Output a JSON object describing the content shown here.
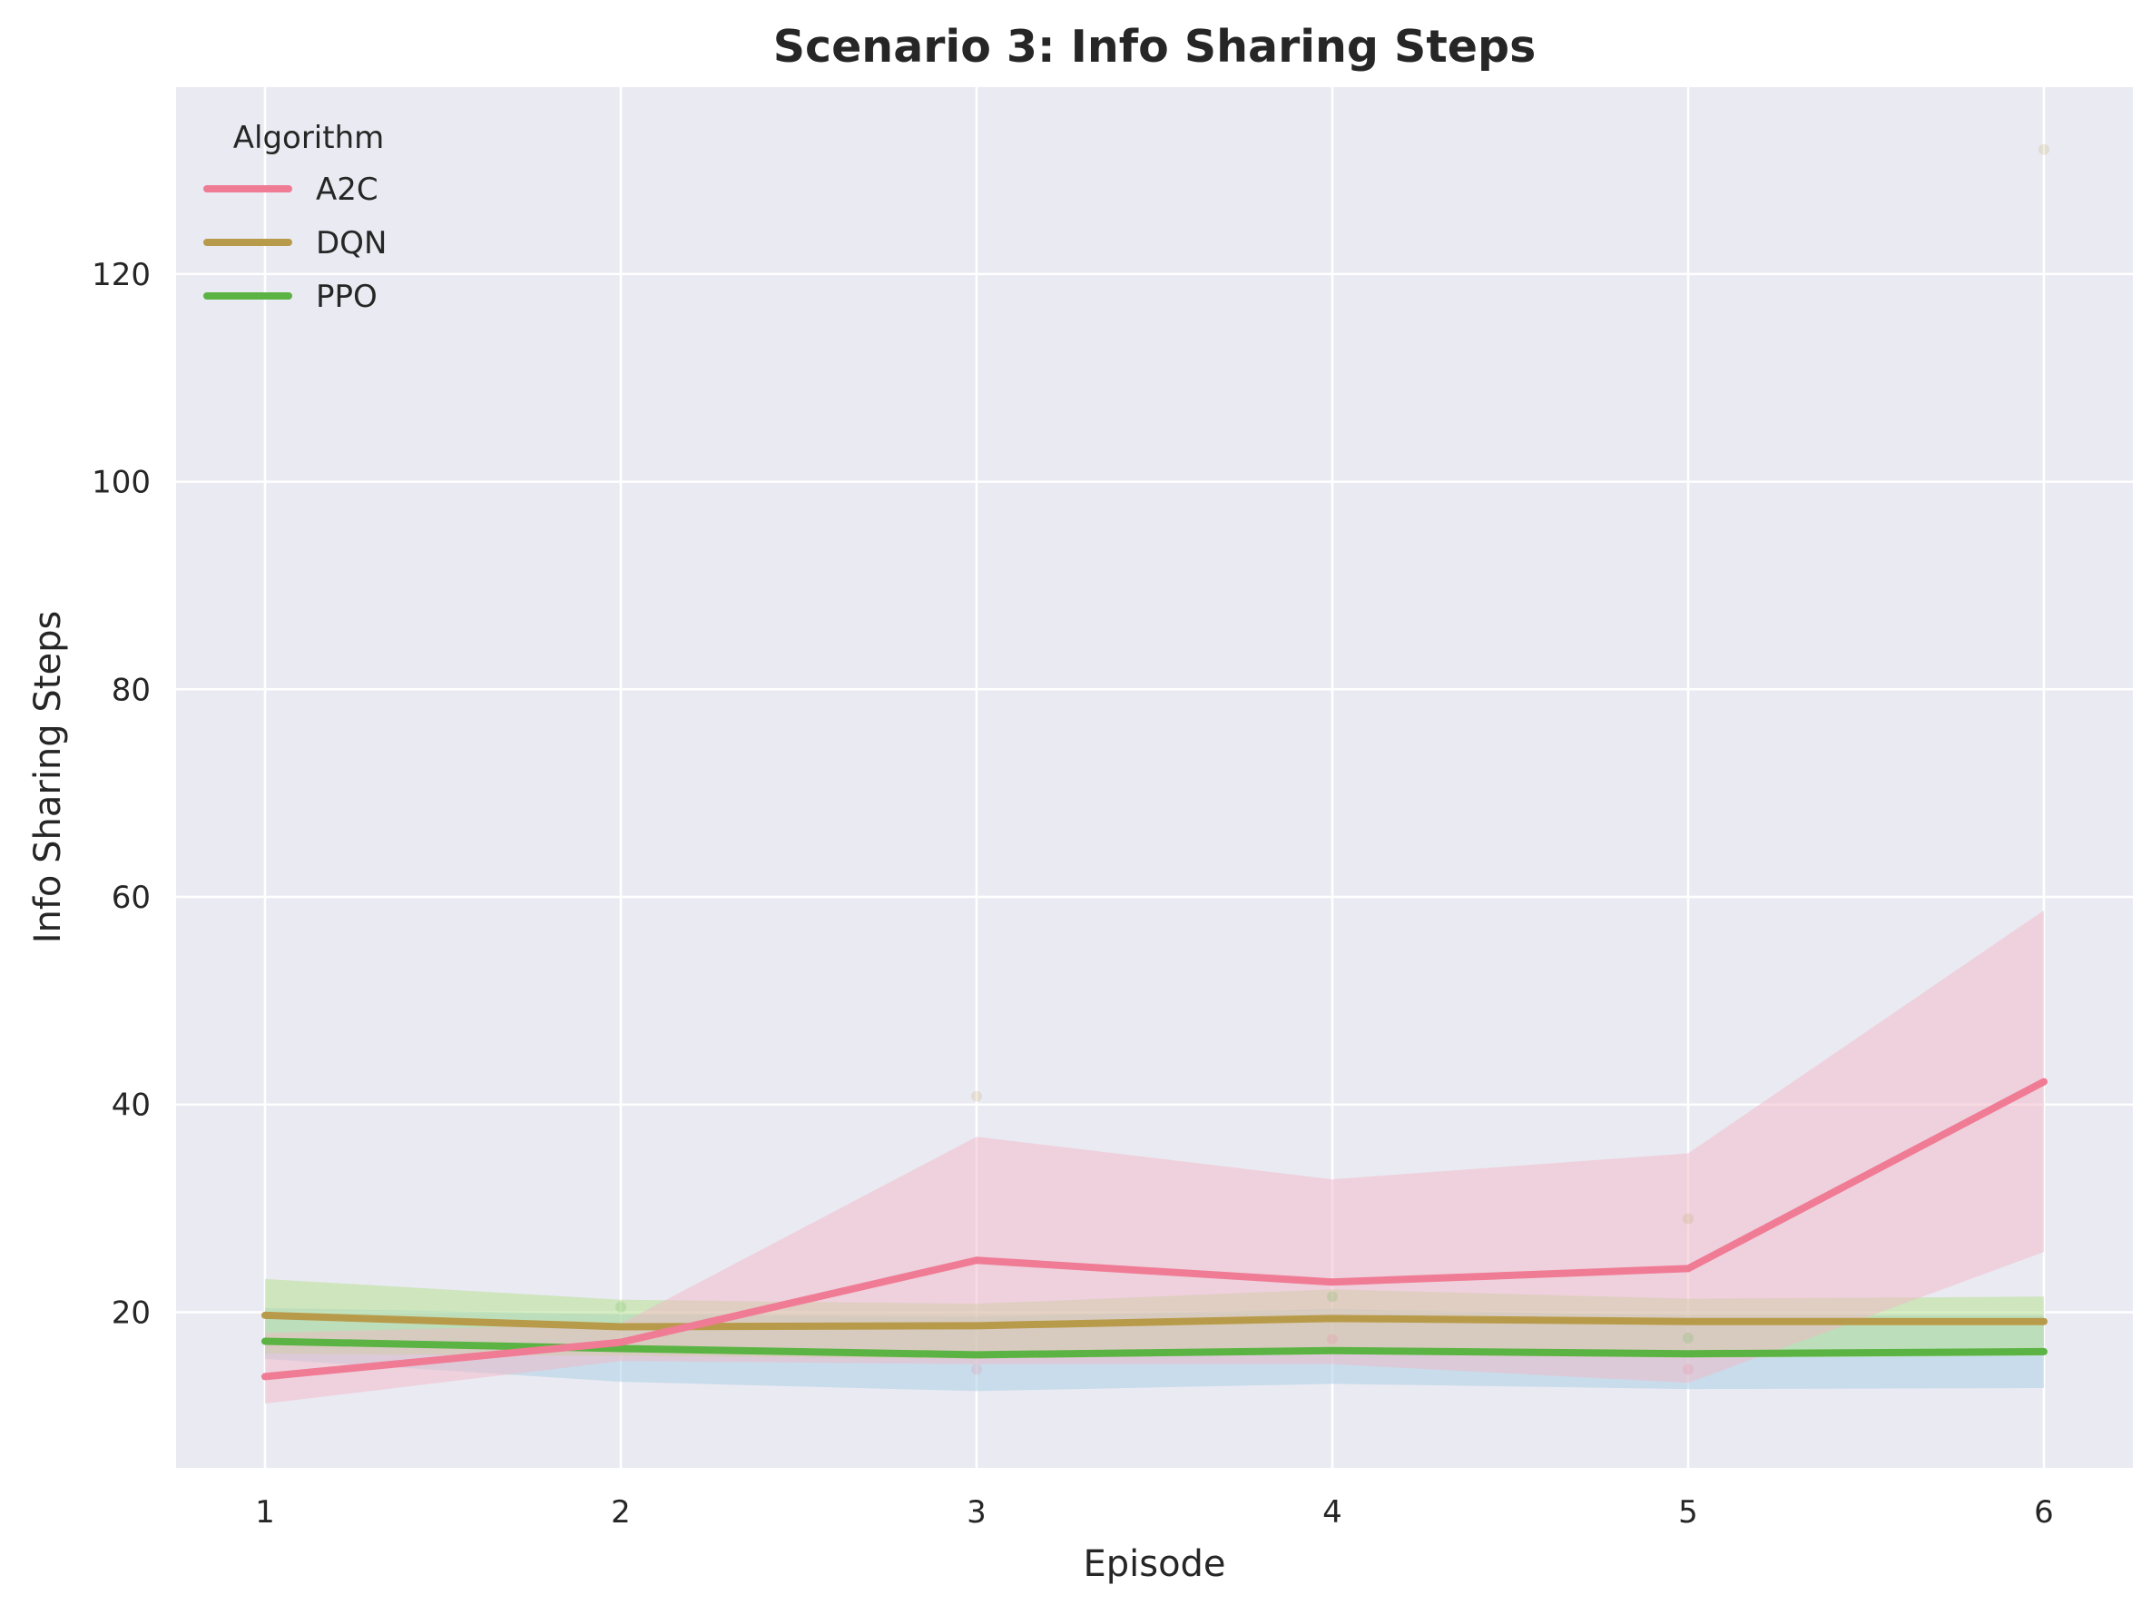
{
  "chart_data": {
    "type": "line",
    "title": "Scenario 3: Info Sharing Steps",
    "xlabel": "Episode",
    "ylabel": "Info Sharing Steps",
    "x": [
      1,
      2,
      3,
      4,
      5,
      6
    ],
    "xlim": [
      0.75,
      6.25
    ],
    "ylim": [
      5,
      138
    ],
    "xticks": [
      1,
      2,
      3,
      4,
      5,
      6
    ],
    "yticks": [
      20,
      40,
      60,
      80,
      100,
      120
    ],
    "grid": true,
    "background": "#EAEAF2",
    "legend": {
      "title": "Algorithm",
      "placement": "top-left"
    },
    "series": [
      {
        "name": "DQN",
        "color": "#B89B4A",
        "band_color": "#A6CEE3",
        "values": [
          19.7,
          18.6,
          18.7,
          19.4,
          19.1,
          19.1
        ],
        "band_lower": [
          15.5,
          13.3,
          12.4,
          13.1,
          12.6,
          12.7
        ],
        "band_upper": [
          20.4,
          19.8,
          19.6,
          20.3,
          19.7,
          19.7
        ],
        "outliers": [
          {
            "x": 3,
            "y": 40.8
          },
          {
            "x": 5,
            "y": 29.0
          },
          {
            "x": 6,
            "y": 132.0
          }
        ]
      },
      {
        "name": "PPO",
        "color": "#5BB343",
        "band_color": "#B2DF8A",
        "values": [
          17.2,
          16.5,
          15.9,
          16.3,
          16.0,
          16.2
        ],
        "band_lower": [
          16.0,
          15.8,
          15.5,
          16.0,
          15.6,
          15.8
        ],
        "band_upper": [
          23.2,
          21.2,
          20.8,
          22.2,
          21.3,
          21.5
        ],
        "outliers": [
          {
            "x": 2,
            "y": 20.5
          },
          {
            "x": 4,
            "y": 21.5
          },
          {
            "x": 5,
            "y": 17.5
          }
        ]
      },
      {
        "name": "A2C",
        "color": "#F07B95",
        "band_color": "#F2B8C6",
        "values": [
          13.8,
          17.1,
          25.0,
          22.9,
          24.2,
          42.2
        ],
        "band_lower": [
          11.2,
          15.3,
          15.0,
          15.0,
          13.2,
          25.8
        ],
        "band_upper": [
          18.0,
          18.9,
          36.9,
          32.8,
          35.3,
          58.7
        ],
        "outliers": [
          {
            "x": 3,
            "y": 14.5
          },
          {
            "x": 4,
            "y": 17.4
          },
          {
            "x": 5,
            "y": 14.5
          }
        ]
      }
    ]
  }
}
